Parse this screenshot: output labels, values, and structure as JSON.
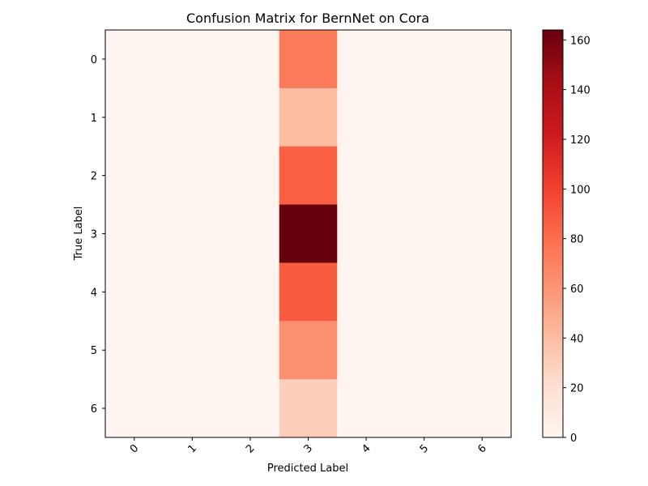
{
  "chart_data": {
    "type": "heatmap",
    "title": "Confusion Matrix for BernNet on Cora",
    "xlabel": "Predicted Label",
    "ylabel": "True Label",
    "x_categories": [
      "0",
      "1",
      "2",
      "3",
      "4",
      "5",
      "6"
    ],
    "y_categories": [
      "0",
      "1",
      "2",
      "3",
      "4",
      "5",
      "6"
    ],
    "matrix": [
      [
        0,
        0,
        0,
        74,
        0,
        0,
        0
      ],
      [
        0,
        0,
        0,
        40,
        0,
        0,
        0
      ],
      [
        0,
        0,
        0,
        87,
        0,
        0,
        0
      ],
      [
        0,
        0,
        0,
        164,
        0,
        0,
        0
      ],
      [
        0,
        0,
        0,
        88,
        0,
        0,
        0
      ],
      [
        0,
        0,
        0,
        63,
        0,
        0,
        0
      ],
      [
        0,
        0,
        0,
        30,
        0,
        0,
        0
      ]
    ],
    "colormap": "Reds",
    "colorbar": {
      "min": 0,
      "max": 164,
      "ticks": [
        0,
        20,
        40,
        60,
        80,
        100,
        120,
        140,
        160
      ]
    },
    "grid": false
  }
}
